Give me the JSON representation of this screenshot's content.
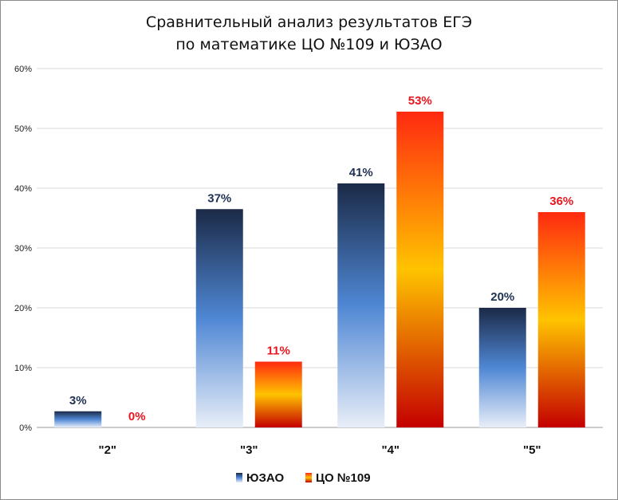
{
  "chart_data": {
    "type": "bar",
    "title": [
      "Сравнительный анализ результатов ЕГЭ",
      "по математике ЦО №109 и ЮЗАО"
    ],
    "categories": [
      "\"2\"",
      "\"3\"",
      "\"4\"",
      "\"5\""
    ],
    "series": [
      {
        "name": "ЮЗАО",
        "values": [
          2.7,
          36.5,
          40.8,
          20.0
        ],
        "labels": [
          "3%",
          "37%",
          "41%",
          "20%"
        ],
        "label_color": "#1f3152"
      },
      {
        "name": "ЦО №109",
        "values": [
          0,
          11.0,
          52.8,
          36.0
        ],
        "labels": [
          "0%",
          "11%",
          "53%",
          "36%"
        ],
        "label_color": "#e8161e"
      }
    ],
    "ylim": [
      0,
      60
    ],
    "yticks": [
      0,
      10,
      20,
      30,
      40,
      50,
      60
    ],
    "ytick_labels": [
      "0%",
      "10%",
      "20%",
      "30%",
      "40%",
      "50%",
      "60%"
    ],
    "grid": true,
    "legend_position": "bottom"
  }
}
